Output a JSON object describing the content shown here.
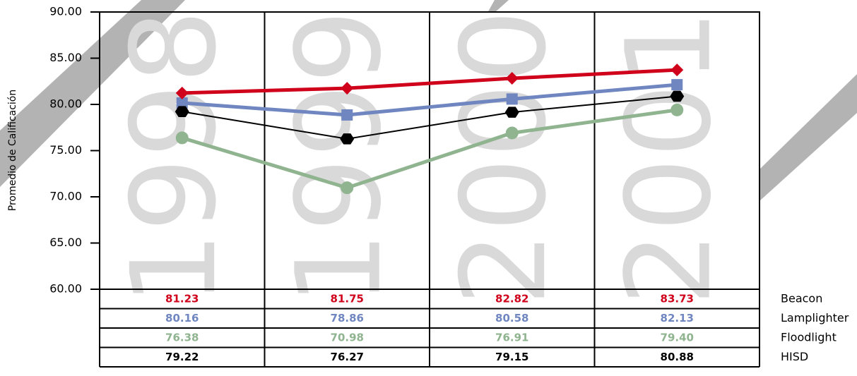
{
  "chart_data": {
    "type": "line",
    "y_label": "Promedio de Calificación",
    "categories": [
      "1998",
      "1999",
      "2000",
      "2001"
    ],
    "series": [
      {
        "name": "Beacon",
        "color": "#d0021b",
        "marker": "diamond",
        "line_width": 5,
        "values": [
          81.23,
          81.75,
          82.82,
          83.73
        ],
        "value_labels": [
          "81.23",
          "81.75",
          "82.82",
          "83.73"
        ]
      },
      {
        "name": "Lamplighter",
        "color": "#6f86c0",
        "marker": "square",
        "line_width": 5,
        "values": [
          80.16,
          78.86,
          80.58,
          82.13
        ],
        "value_labels": [
          "80.16",
          "78.86",
          "80.58",
          "82.13"
        ]
      },
      {
        "name": "Floodlight",
        "color": "#8fb48f",
        "marker": "circle",
        "line_width": 5,
        "values": [
          76.38,
          70.98,
          76.91,
          79.4
        ],
        "value_labels": [
          "76.38",
          "70.98",
          "76.91",
          "79.40"
        ]
      },
      {
        "name": "HISD",
        "color": "#000000",
        "marker": "hexagon",
        "line_width": 2,
        "values": [
          79.22,
          76.27,
          79.15,
          80.88
        ],
        "value_labels": [
          "79.22",
          "76.27",
          "79.15",
          "80.88"
        ]
      }
    ],
    "ylim": [
      60,
      90
    ],
    "yticks": [
      {
        "value": 60,
        "label": "60.00"
      },
      {
        "value": 65,
        "label": "65.00"
      },
      {
        "value": 70,
        "label": "70.00"
      },
      {
        "value": 75,
        "label": "75.00"
      },
      {
        "value": 80,
        "label": "80.00"
      },
      {
        "value": 85,
        "label": "85.00"
      },
      {
        "value": 90,
        "label": "90.00"
      }
    ]
  }
}
